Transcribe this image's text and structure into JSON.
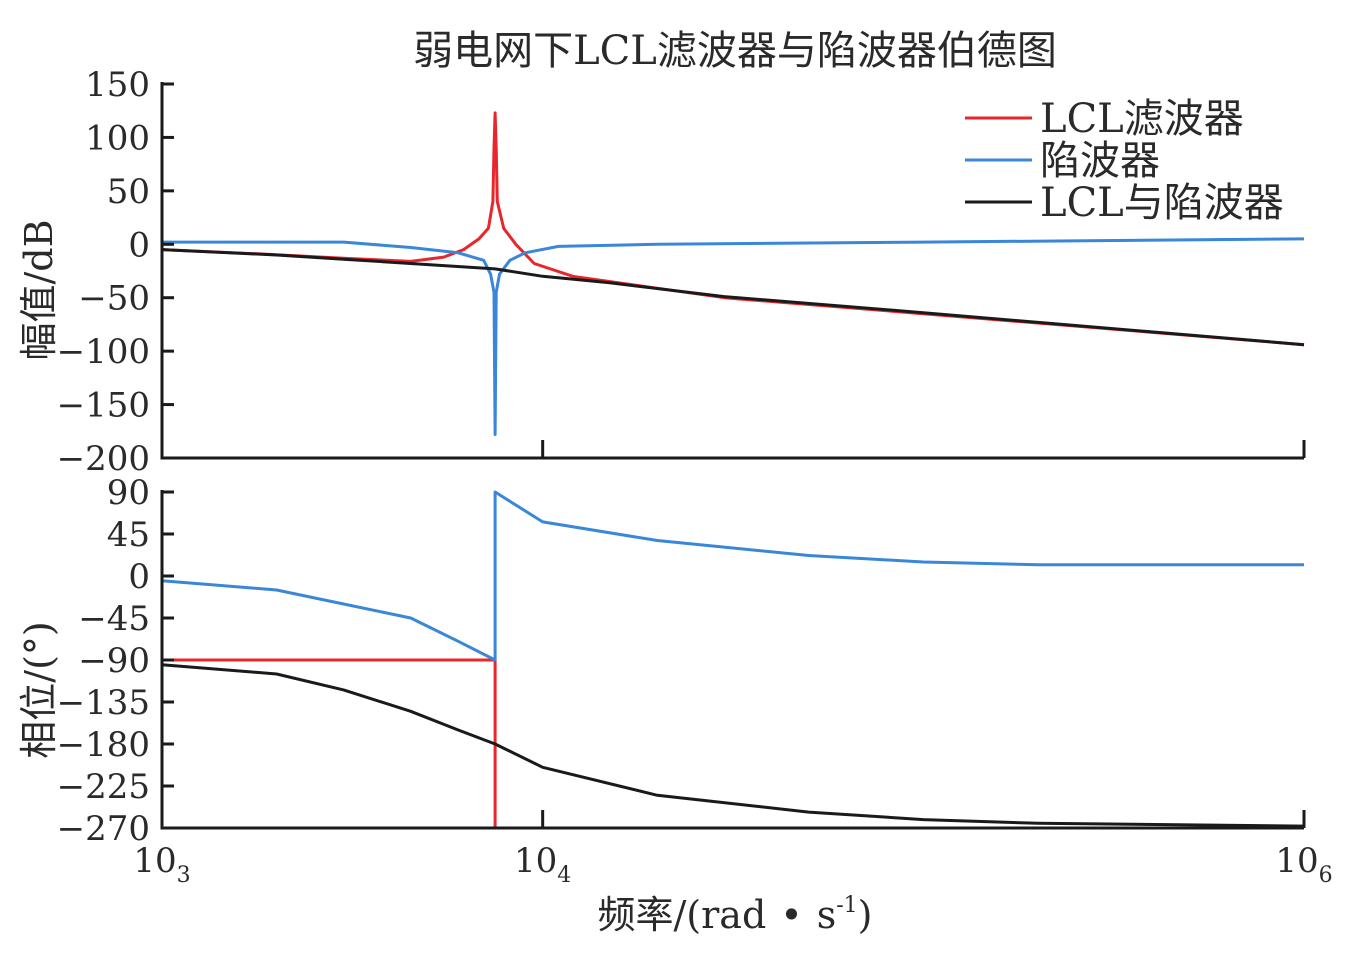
{
  "chart_data": {
    "title": "弱电网下LCL滤波器与陷波器伯德图",
    "legend": {
      "position": "top-right",
      "entries": [
        {
          "name": "LCL滤波器",
          "color": "#e8262b"
        },
        {
          "name": "陷波器",
          "color": "#3a86d8"
        },
        {
          "name": "LCL与陷波器",
          "color": "#1a1a1a"
        }
      ]
    },
    "xlabel": {
      "main": "频率/(rad",
      "bullet": "•",
      "unit": "s",
      "exp": "-1",
      "close": ")"
    },
    "xscale": "log",
    "xlim": [
      1000,
      1000000
    ],
    "xticks": [
      {
        "base": "10",
        "exp": "3",
        "value": 1000
      },
      {
        "base": "10",
        "exp": "4",
        "value": 10000
      },
      {
        "base": "10",
        "exp": "6",
        "value": 1000000
      }
    ],
    "plots": [
      {
        "type": "line",
        "id": "magnitude",
        "ylabel": "幅值/dB",
        "ylim": [
          -200,
          150
        ],
        "yticks": [
          {
            "label": "150",
            "value": 150
          },
          {
            "label": "100",
            "value": 100
          },
          {
            "label": "50",
            "value": 50
          },
          {
            "label": "0",
            "value": 0
          },
          {
            "label": "−50",
            "value": -50
          },
          {
            "label": "−100",
            "value": -100
          },
          {
            "label": "−150",
            "value": -150
          },
          {
            "label": "−200",
            "value": -200
          }
        ],
        "series": [
          {
            "name": "LCL滤波器",
            "color": "#e8262b",
            "points": [
              [
                1000,
                -5
              ],
              [
                1800,
                -9
              ],
              [
                3000,
                -13
              ],
              [
                4500,
                -16
              ],
              [
                5500,
                -12
              ],
              [
                6200,
                -5
              ],
              [
                6800,
                5
              ],
              [
                7200,
                15
              ],
              [
                7400,
                40
              ],
              [
                7450,
                90
              ],
              [
                7500,
                123
              ],
              [
                7550,
                90
              ],
              [
                7600,
                40
              ],
              [
                7900,
                15
              ],
              [
                8500,
                0
              ],
              [
                9500,
                -18
              ],
              [
                12000,
                -30
              ],
              [
                30000,
                -50
              ],
              [
                100000,
                -65
              ],
              [
                1000000,
                -94
              ]
            ]
          },
          {
            "name": "陷波器",
            "color": "#3a86d8",
            "points": [
              [
                1000,
                2
              ],
              [
                3000,
                2
              ],
              [
                4500,
                -3
              ],
              [
                6000,
                -8
              ],
              [
                7000,
                -15
              ],
              [
                7300,
                -28
              ],
              [
                7450,
                -45
              ],
              [
                7500,
                -178
              ],
              [
                7550,
                -45
              ],
              [
                7700,
                -28
              ],
              [
                8200,
                -15
              ],
              [
                9000,
                -8
              ],
              [
                11000,
                -2
              ],
              [
                20000,
                0
              ],
              [
                100000,
                2
              ],
              [
                1000000,
                5
              ]
            ]
          },
          {
            "name": "LCL与陷波器",
            "color": "#1a1a1a",
            "points": [
              [
                1000,
                -5
              ],
              [
                2000,
                -10
              ],
              [
                3000,
                -14
              ],
              [
                5000,
                -19
              ],
              [
                7500,
                -23
              ],
              [
                10000,
                -30
              ],
              [
                15000,
                -36
              ],
              [
                30000,
                -49
              ],
              [
                100000,
                -64
              ],
              [
                1000000,
                -94
              ]
            ]
          }
        ]
      },
      {
        "type": "line",
        "id": "phase",
        "ylabel": "相位/(°)",
        "ylim": [
          -270,
          90
        ],
        "yticks": [
          {
            "label": "90",
            "value": 90
          },
          {
            "label": "45",
            "value": 45
          },
          {
            "label": "0",
            "value": 0
          },
          {
            "label": "−45",
            "value": -45
          },
          {
            "label": "−90",
            "value": -90
          },
          {
            "label": "−135",
            "value": -135
          },
          {
            "label": "−180",
            "value": -180
          },
          {
            "label": "−225",
            "value": -225
          },
          {
            "label": "−270",
            "value": -270
          }
        ],
        "series": [
          {
            "name": "LCL滤波器",
            "color": "#e8262b",
            "points": [
              [
                1000,
                -90
              ],
              [
                7500,
                -90
              ],
              [
                7500,
                -270
              ]
            ]
          },
          {
            "name": "陷波器",
            "color": "#3a86d8",
            "points": [
              [
                1000,
                -5
              ],
              [
                2000,
                -15
              ],
              [
                3000,
                -30
              ],
              [
                4500,
                -45
              ],
              [
                6000,
                -70
              ],
              [
                7500,
                -90
              ],
              [
                7500,
                90
              ],
              [
                10000,
                58
              ],
              [
                20000,
                38
              ],
              [
                50000,
                22
              ],
              [
                100000,
                15
              ],
              [
                200000,
                12
              ],
              [
                1000000,
                12
              ]
            ]
          },
          {
            "name": "LCL与陷波器",
            "color": "#1a1a1a",
            "points": [
              [
                1000,
                -95
              ],
              [
                2000,
                -105
              ],
              [
                3000,
                -122
              ],
              [
                4500,
                -145
              ],
              [
                6000,
                -165
              ],
              [
                7500,
                -180
              ],
              [
                10000,
                -205
              ],
              [
                20000,
                -235
              ],
              [
                50000,
                -253
              ],
              [
                100000,
                -261
              ],
              [
                200000,
                -265
              ],
              [
                1000000,
                -268
              ]
            ]
          }
        ]
      }
    ]
  }
}
